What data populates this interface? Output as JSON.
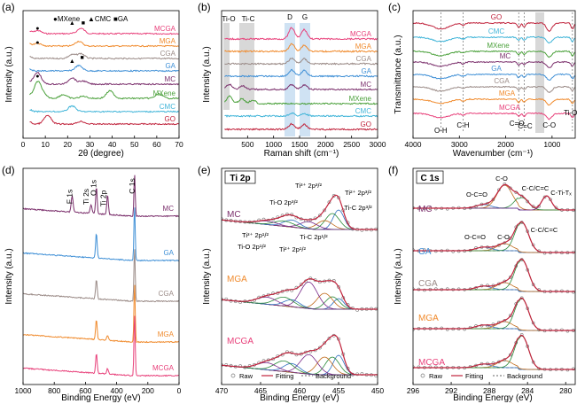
{
  "chart_data": [
    {
      "panel": "(a)",
      "type": "line",
      "xlabel": "2θ (degree)",
      "ylabel": "Intensity (a.u.)",
      "xlim": [
        0,
        70
      ],
      "xticks": [
        "0",
        "10",
        "20",
        "30",
        "40",
        "50",
        "60",
        "70"
      ],
      "legend": [
        {
          "symbol": "●",
          "label": "MXene"
        },
        {
          "symbol": "▲",
          "label": "CMC"
        },
        {
          "symbol": "■",
          "label": "GA"
        }
      ],
      "series": [
        {
          "name": "MCGA",
          "color": "#e8407a",
          "peaks": [
            [
              6.5,
              0.6
            ],
            [
              26,
              1.0
            ]
          ]
        },
        {
          "name": "MGA",
          "color": "#f08a2c",
          "peaks": [
            [
              6.5,
              0.5
            ],
            [
              25,
              0.9
            ]
          ]
        },
        {
          "name": "CGA",
          "color": "#9a8a86",
          "peaks": [
            [
              22,
              0.7
            ],
            [
              26,
              0.9
            ]
          ]
        },
        {
          "name": "GA",
          "color": "#3e8fd6",
          "peaks": [
            [
              25,
              1.0
            ]
          ]
        },
        {
          "name": "MC",
          "color": "#7a2e6b",
          "peaks": [
            [
              6.5,
              2.2
            ],
            [
              22,
              1.2
            ],
            [
              27,
              0.6
            ]
          ]
        },
        {
          "name": "MXene",
          "color": "#4aa03a",
          "peaks": [
            [
              6.5,
              3.0
            ],
            [
              9,
              0.6
            ],
            [
              18,
              0.7
            ],
            [
              27,
              0.4
            ],
            [
              39,
              1.4
            ],
            [
              61,
              0.8
            ]
          ]
        },
        {
          "name": "CMC",
          "color": "#3fb4d8",
          "peaks": [
            [
              22,
              1.1
            ]
          ]
        },
        {
          "name": "GO",
          "color": "#c0233c",
          "peaks": [
            [
              11,
              1.6
            ],
            [
              26,
              0.5
            ]
          ]
        }
      ]
    },
    {
      "panel": "(b)",
      "type": "line",
      "xlabel": "Raman shift (cm⁻¹)",
      "ylabel": "Intensity (a.u.)",
      "xlim": [
        0,
        3000
      ],
      "xticks": [
        "500",
        "1000",
        "1500",
        "2000",
        "2500",
        "3000"
      ],
      "annotations": [
        "Ti-O",
        "Ti-C",
        "D",
        "G"
      ],
      "series": [
        {
          "name": "MCGA",
          "color": "#e8407a",
          "peaks": [
            [
              1350,
              1.8
            ],
            [
              1590,
              1.5
            ]
          ]
        },
        {
          "name": "MGA",
          "color": "#f08a2c",
          "peaks": [
            [
              1350,
              1.2
            ],
            [
              1590,
              1.0
            ]
          ]
        },
        {
          "name": "CGA",
          "color": "#9a8a86",
          "peaks": [
            [
              1350,
              0.9
            ],
            [
              1590,
              0.8
            ]
          ]
        },
        {
          "name": "GA",
          "color": "#3e8fd6",
          "peaks": [
            [
              1350,
              1.0
            ],
            [
              1590,
              0.9
            ]
          ]
        },
        {
          "name": "MC",
          "color": "#7a2e6b",
          "peaks": [
            [
              150,
              0.8
            ],
            [
              400,
              0.6
            ],
            [
              1350,
              0.8
            ],
            [
              1590,
              0.7
            ]
          ]
        },
        {
          "name": "MXene",
          "color": "#4aa03a",
          "peaks": [
            [
              150,
              1.2
            ],
            [
              390,
              0.8
            ],
            [
              600,
              0.6
            ]
          ]
        },
        {
          "name": "CMC",
          "color": "#3fb4d8",
          "peaks": [
            [
              1350,
              0.5
            ],
            [
              1590,
              0.4
            ]
          ]
        },
        {
          "name": "GO",
          "color": "#c0233c",
          "peaks": [
            [
              1350,
              0.9
            ],
            [
              1590,
              0.8
            ]
          ]
        }
      ]
    },
    {
      "panel": "(c)",
      "type": "line",
      "xlabel": "Wavenumber (cm⁻¹)",
      "ylabel": "Transmittance (a.u.)",
      "xlim": [
        4000,
        500
      ],
      "xticks": [
        "4000",
        "3000",
        "2000",
        "1000"
      ],
      "annotations": [
        "O-H",
        "C-H",
        "C=O",
        "C=C",
        "C-O",
        "Ti-O"
      ],
      "series": [
        {
          "name": "GO",
          "color": "#c0233c"
        },
        {
          "name": "CMC",
          "color": "#3fb4d8"
        },
        {
          "name": "MXene",
          "color": "#4aa03a"
        },
        {
          "name": "MC",
          "color": "#7a2e6b"
        },
        {
          "name": "GA",
          "color": "#3e8fd6"
        },
        {
          "name": "CGA",
          "color": "#9a8a86"
        },
        {
          "name": "MGA",
          "color": "#f08a2c"
        },
        {
          "name": "MCGA",
          "color": "#e8407a"
        }
      ]
    },
    {
      "panel": "(d)",
      "type": "line",
      "xlabel": "Binding Energy (eV)",
      "ylabel": "Intensity (a.u.)",
      "xlim": [
        1000,
        0
      ],
      "xticks": [
        "1000",
        "800",
        "600",
        "400",
        "200",
        "0"
      ],
      "annotations": [
        "F 1s",
        "Ti 2s",
        "O 1s",
        "Ti 2p",
        "C 1s"
      ],
      "series": [
        {
          "name": "MC",
          "color": "#7a2e6b"
        },
        {
          "name": "GA",
          "color": "#3e8fd6"
        },
        {
          "name": "CGA",
          "color": "#9a8a86"
        },
        {
          "name": "MGA",
          "color": "#f08a2c"
        },
        {
          "name": "MCGA",
          "color": "#e8407a"
        }
      ]
    },
    {
      "panel": "(e)",
      "type": "line",
      "inset_title": "Ti 2p",
      "xlabel": "Binding Energy (eV)",
      "ylabel": "Intensity (a.u.)",
      "xlim": [
        470,
        450
      ],
      "xticks": [
        "470",
        "465",
        "460",
        "455",
        "450"
      ],
      "annotations": [
        "Ti³⁺ 2p³/²",
        "Ti²⁺ 2p³/²",
        "Ti-O 2p³/²",
        "Ti-C 2p³/²",
        "Ti³⁺ 2p¹/²",
        "Ti-C 2p¹/²",
        "Ti-O 2p¹/²",
        "Ti²⁺ 2p¹/²"
      ],
      "series": [
        {
          "name": "MC"
        },
        {
          "name": "MGA"
        },
        {
          "name": "MCGA"
        }
      ],
      "legend": [
        "Raw",
        "Fitting",
        "Background"
      ]
    },
    {
      "panel": "(f)",
      "type": "line",
      "inset_title": "C 1s",
      "xlabel": "Binding Energy (eV)",
      "ylabel": "Intensity (a.u.)",
      "xlim": [
        296,
        279
      ],
      "xticks": [
        "296",
        "292",
        "288",
        "284",
        "280"
      ],
      "annotations": [
        "O-C=O",
        "C-O",
        "C-C/C=C",
        "C-Ti-Tₓ"
      ],
      "series": [
        {
          "name": "MC"
        },
        {
          "name": "GA"
        },
        {
          "name": "CGA"
        },
        {
          "name": "MGA"
        },
        {
          "name": "MCGA"
        }
      ],
      "legend": [
        "Raw",
        "Fitting",
        "Background"
      ]
    }
  ]
}
